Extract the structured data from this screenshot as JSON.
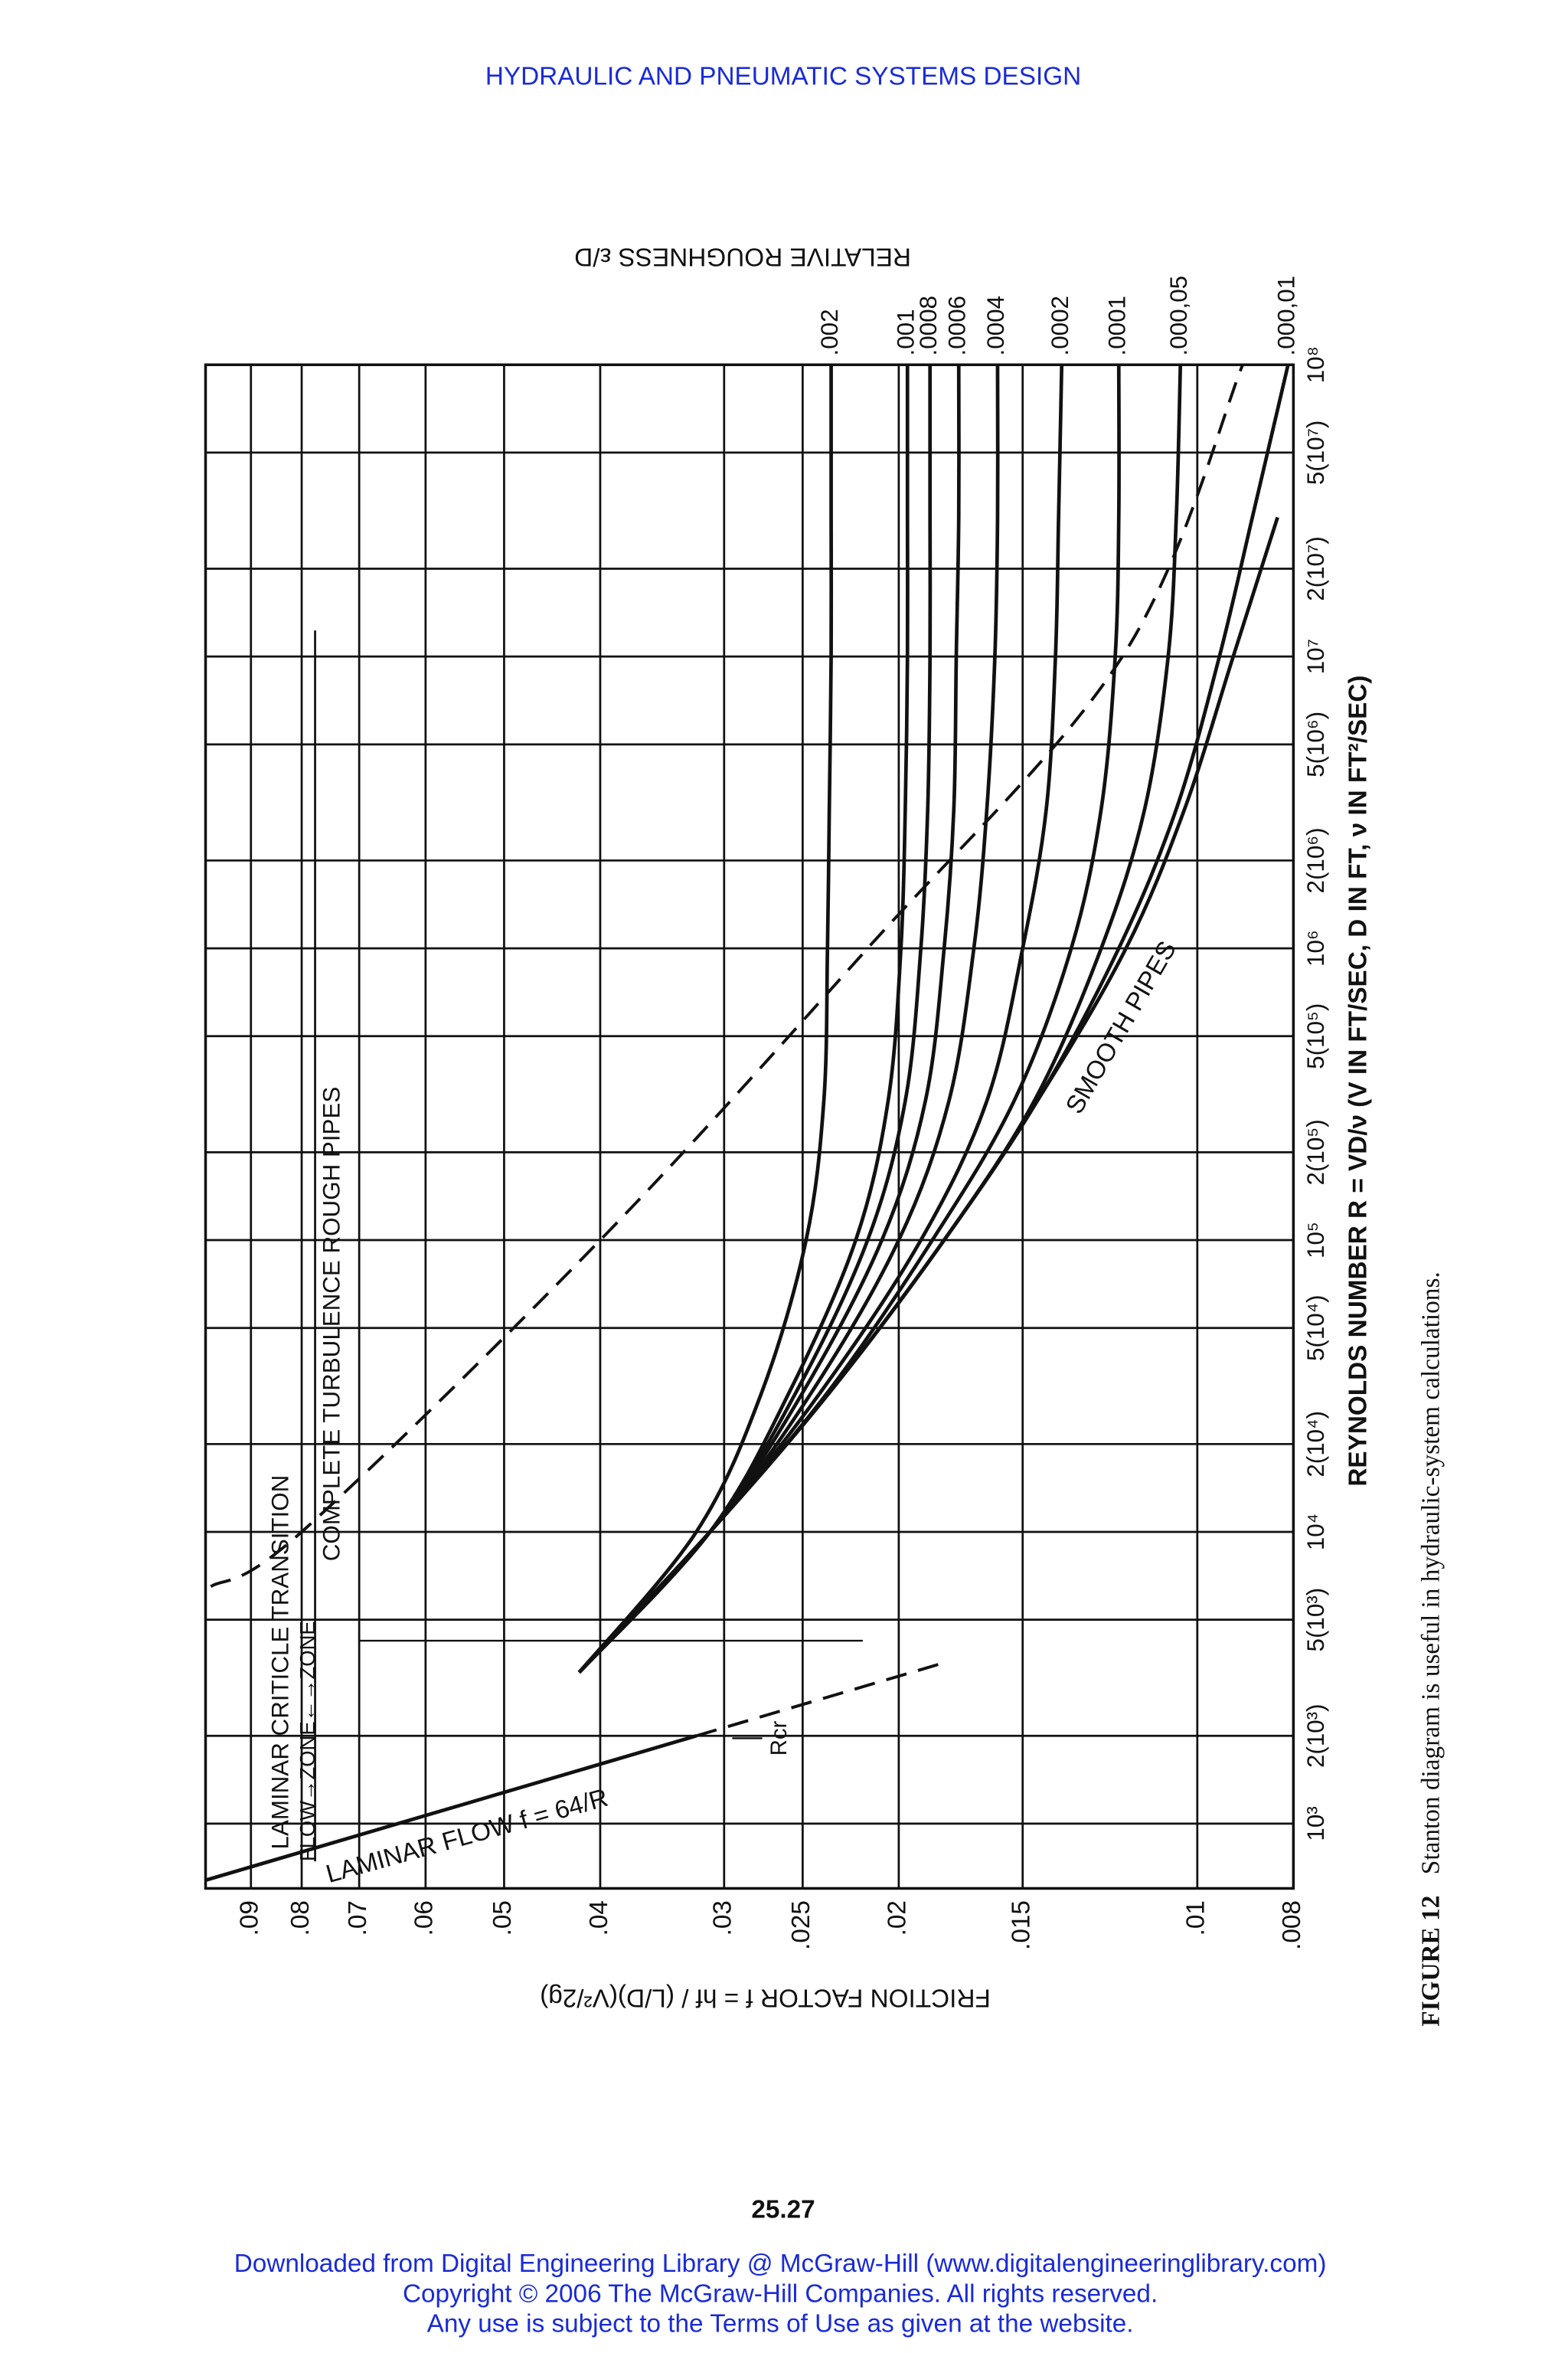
{
  "header": {
    "title": "HYDRAULIC AND PNEUMATIC SYSTEMS DESIGN"
  },
  "chart_data": {
    "type": "line",
    "top_label": "RELATIVE ROUGHNESS ε/D",
    "x_label": "REYNOLDS NUMBER R = VD/ν (V IN FT/SEC, D IN FT, ν IN FT²/SEC)",
    "y_label": "FRICTION FACTOR f = hf / (L/D)(V²/2g)",
    "xscale": "log",
    "yscale": "log",
    "grid": true,
    "xlim": [
      600,
      100000000
    ],
    "ylim": [
      0.008,
      0.1
    ],
    "xticks": [
      {
        "value": 1000,
        "label": "10³"
      },
      {
        "value": 2000,
        "label": "2(10³)"
      },
      {
        "value": 5000,
        "label": "5(10³)"
      },
      {
        "value": 10000,
        "label": "10⁴"
      },
      {
        "value": 20000,
        "label": "2(10⁴)"
      },
      {
        "value": 50000,
        "label": "5(10⁴)"
      },
      {
        "value": 100000,
        "label": "10⁵"
      },
      {
        "value": 200000,
        "label": "2(10⁵)"
      },
      {
        "value": 500000,
        "label": "5(10⁵)"
      },
      {
        "value": 1000000,
        "label": "10⁶"
      },
      {
        "value": 2000000,
        "label": "2(10⁶)"
      },
      {
        "value": 5000000,
        "label": "5(10⁶)"
      },
      {
        "value": 10000000,
        "label": "10⁷"
      },
      {
        "value": 20000000,
        "label": "2(10⁷)"
      },
      {
        "value": 50000000,
        "label": "5(10⁷)"
      },
      {
        "value": 100000000,
        "label": "10⁸"
      }
    ],
    "yticks": [
      {
        "value": 0.09,
        "label": ".09"
      },
      {
        "value": 0.08,
        "label": ".08"
      },
      {
        "value": 0.07,
        "label": ".07"
      },
      {
        "value": 0.06,
        "label": ".06"
      },
      {
        "value": 0.05,
        "label": ".05"
      },
      {
        "value": 0.04,
        "label": ".04"
      },
      {
        "value": 0.03,
        "label": ".03"
      },
      {
        "value": 0.025,
        "label": ".025"
      },
      {
        "value": 0.02,
        "label": ".02"
      },
      {
        "value": 0.015,
        "label": ".015"
      },
      {
        "value": 0.01,
        "label": ".01"
      },
      {
        "value": 0.008,
        "label": ".008"
      }
    ],
    "series": [
      {
        "name": ".002",
        "color": "#111111",
        "x": [
          3300,
          10000,
          30000,
          100000,
          300000,
          1000000,
          3000000,
          10000000,
          30000000,
          100000000
        ],
        "values": [
          0.042,
          0.032,
          0.0275,
          0.0248,
          0.0238,
          0.0236,
          0.0235,
          0.0234,
          0.0234,
          0.0234
        ]
      },
      {
        "name": ".001",
        "color": "#111111",
        "x": [
          3300,
          10000,
          30000,
          100000,
          300000,
          1000000,
          3000000,
          10000000,
          30000000,
          100000000
        ],
        "values": [
          0.042,
          0.031,
          0.0258,
          0.0221,
          0.0205,
          0.0199,
          0.0197,
          0.0196,
          0.0196,
          0.0196
        ]
      },
      {
        "name": ".0008",
        "color": "#111111",
        "x": [
          3300,
          10000,
          30000,
          100000,
          300000,
          1000000,
          3000000,
          10000000,
          30000000,
          100000000
        ],
        "values": [
          0.042,
          0.031,
          0.0254,
          0.0215,
          0.0197,
          0.019,
          0.0187,
          0.0186,
          0.0186,
          0.0186
        ]
      },
      {
        "name": ".0006",
        "color": "#111111",
        "x": [
          3300,
          10000,
          30000,
          100000,
          300000,
          1000000,
          3000000,
          10000000,
          30000000,
          100000000
        ],
        "values": [
          0.042,
          0.031,
          0.025,
          0.0208,
          0.0188,
          0.018,
          0.0176,
          0.0175,
          0.0174,
          0.0174
        ]
      },
      {
        "name": ".0004",
        "color": "#111111",
        "x": [
          3300,
          10000,
          30000,
          100000,
          300000,
          1000000,
          3000000,
          10000000,
          30000000,
          100000000
        ],
        "values": [
          0.042,
          0.031,
          0.0245,
          0.02,
          0.0178,
          0.0168,
          0.0163,
          0.016,
          0.0159,
          0.0159
        ]
      },
      {
        "name": ".0002",
        "color": "#111111",
        "x": [
          3300,
          10000,
          30000,
          100000,
          300000,
          1000000,
          3000000,
          10000000,
          30000000,
          100000000
        ],
        "values": [
          0.042,
          0.031,
          0.024,
          0.019,
          0.0163,
          0.015,
          0.0142,
          0.0139,
          0.0138,
          0.0137
        ]
      },
      {
        "name": ".0001",
        "color": "#111111",
        "x": [
          3300,
          10000,
          30000,
          100000,
          300000,
          1000000,
          3000000,
          10000000,
          30000000,
          100000000
        ],
        "values": [
          0.042,
          0.031,
          0.0236,
          0.0185,
          0.0153,
          0.0134,
          0.0125,
          0.0121,
          0.012,
          0.012
        ]
      },
      {
        "name": ".000,05",
        "color": "#111111",
        "x": [
          3300,
          10000,
          30000,
          100000,
          300000,
          1000000,
          3000000,
          10000000,
          30000000,
          100000000
        ],
        "values": [
          0.042,
          0.031,
          0.0235,
          0.018,
          0.0146,
          0.0125,
          0.0113,
          0.0107,
          0.0105,
          0.0104
        ]
      },
      {
        "name": ".000,01",
        "color": "#111111",
        "x": [
          3300,
          10000,
          30000,
          100000,
          300000,
          1000000,
          3000000,
          10000000,
          30000000,
          100000000
        ],
        "values": [
          0.042,
          0.031,
          0.0235,
          0.018,
          0.0145,
          0.012,
          0.0105,
          0.0095,
          0.0088,
          0.0081
        ]
      },
      {
        "name": "SMOOTH PIPES",
        "color": "#111111",
        "x": [
          3300,
          10000,
          30000,
          100000,
          300000,
          1000000,
          3000000,
          10000000,
          30000000,
          100000000
        ],
        "values": [
          0.042,
          0.031,
          0.0235,
          0.018,
          0.0145,
          0.0118,
          0.0103,
          0.0092,
          0.0083,
          null
        ]
      },
      {
        "name": "LAMINAR FLOW f = 64/R",
        "color": "#111111",
        "x": [
          640,
          2000
        ],
        "values": [
          0.1,
          0.032
        ]
      },
      {
        "color": "#111111",
        "dash": true,
        "x": [
          2000,
          3600
        ],
        "values": [
          0.032,
          0.0178
        ]
      },
      {
        "color": "#111111",
        "dash": true,
        "x": [
          6500,
          10000,
          100000,
          1000000,
          10000000,
          100000000
        ],
        "values": [
          0.0988,
          0.08,
          0.04,
          0.0215,
          0.0119,
          0.009
        ]
      }
    ],
    "annotations": [
      "LAMINAR CRITICLE TRANSITION",
      "FLOW→ZONE←→ZONE",
      "COMPLETE TURBULENCE ROUGH PIPES",
      "Rcr"
    ]
  },
  "caption": {
    "label": "FIGURE 12",
    "text": "Stanton diagram is useful in hydraulic-system calculations."
  },
  "page_number": "25.27",
  "footer": [
    "Downloaded from Digital Engineering Library @ McGraw-Hill (www.digitalengineeringlibrary.com)",
    "Copyright © 2006 The McGraw-Hill Companies. All rights reserved.",
    "Any use is subject to the Terms of Use as given at the website."
  ]
}
